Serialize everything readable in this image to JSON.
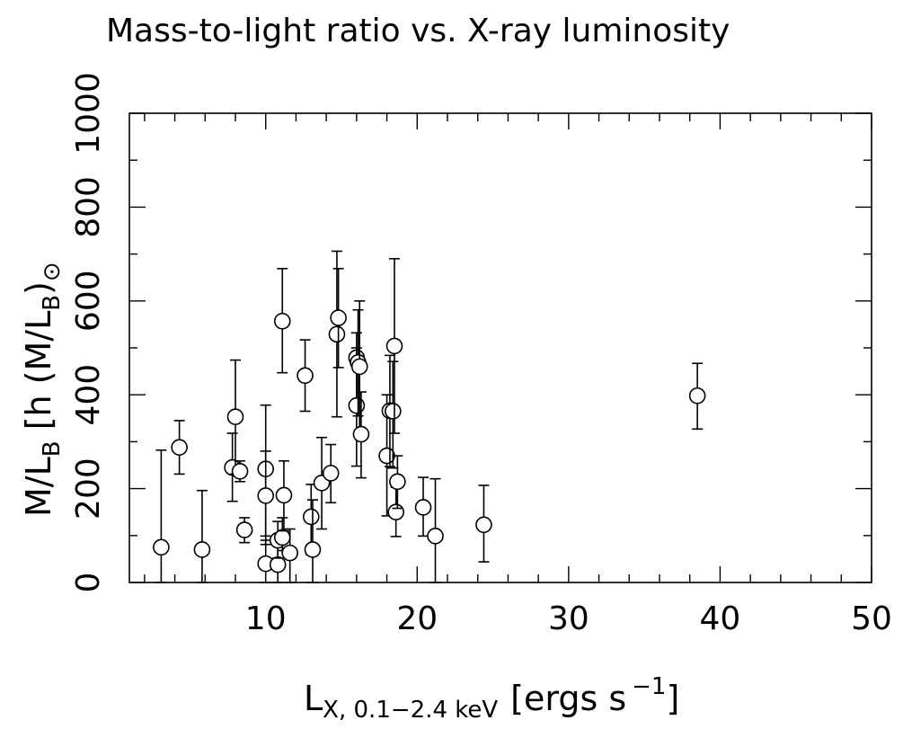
{
  "chart_data": {
    "type": "scatter",
    "title": "Mass-to-light ratio vs. X-ray luminosity",
    "xlabel": {
      "main": "L",
      "sub": "X, 0.1−2.4 keV",
      "unit": "[ergs s",
      "sup": "−1",
      "close": "]"
    },
    "ylabel": {
      "main": "M/L",
      "sub1": "B",
      "mid": " [h (M/L",
      "sub2": "B",
      "close": ")",
      "sub3": "⊙"
    },
    "xlim": [
      1,
      50
    ],
    "ylim": [
      0,
      1000
    ],
    "xticks": [
      10,
      20,
      30,
      40,
      50
    ],
    "xtick_labels": [
      "10",
      "20",
      "30",
      "40",
      "50"
    ],
    "yticks": [
      0,
      200,
      400,
      600,
      800,
      1000
    ],
    "ytick_labels": [
      "0",
      "200",
      "400",
      "600",
      "800",
      "1000"
    ],
    "grid": false,
    "points": [
      {
        "x": 3.1,
        "y": 75,
        "lo": 0,
        "hi": 282
      },
      {
        "x": 4.3,
        "y": 288,
        "lo": 231,
        "hi": 345
      },
      {
        "x": 5.8,
        "y": 70,
        "lo": 0,
        "hi": 196
      },
      {
        "x": 7.8,
        "y": 245,
        "lo": 173,
        "hi": 318
      },
      {
        "x": 8.0,
        "y": 353,
        "lo": 231,
        "hi": 474
      },
      {
        "x": 8.3,
        "y": 237,
        "lo": 215,
        "hi": 259
      },
      {
        "x": 8.6,
        "y": 112,
        "lo": 85,
        "hi": 138
      },
      {
        "x": 10.0,
        "y": 242,
        "lo": 99,
        "hi": 378
      },
      {
        "x": 10.0,
        "y": 185,
        "lo": 81,
        "hi": 280
      },
      {
        "x": 10.0,
        "y": 40,
        "lo": 0,
        "hi": 90
      },
      {
        "x": 10.8,
        "y": 38,
        "lo": 0,
        "hi": 98
      },
      {
        "x": 10.8,
        "y": 90,
        "lo": 52,
        "hi": 130
      },
      {
        "x": 11.1,
        "y": 96,
        "lo": 68,
        "hi": 138
      },
      {
        "x": 11.1,
        "y": 557,
        "lo": 447,
        "hi": 669
      },
      {
        "x": 11.2,
        "y": 186,
        "lo": 110,
        "hi": 259
      },
      {
        "x": 11.6,
        "y": 63,
        "lo": 0,
        "hi": 114
      },
      {
        "x": 12.6,
        "y": 441,
        "lo": 365,
        "hi": 517
      },
      {
        "x": 13.0,
        "y": 140,
        "lo": 59,
        "hi": 209
      },
      {
        "x": 13.1,
        "y": 70,
        "lo": 0,
        "hi": 176
      },
      {
        "x": 13.7,
        "y": 212,
        "lo": 114,
        "hi": 309
      },
      {
        "x": 14.3,
        "y": 233,
        "lo": 170,
        "hi": 294
      },
      {
        "x": 14.7,
        "y": 529,
        "lo": 353,
        "hi": 706
      },
      {
        "x": 14.8,
        "y": 564,
        "lo": 458,
        "hi": 669
      },
      {
        "x": 16.0,
        "y": 479,
        "lo": 390,
        "hi": 532
      },
      {
        "x": 16.0,
        "y": 377,
        "lo": 248,
        "hi": 500
      },
      {
        "x": 16.1,
        "y": 469,
        "lo": 355,
        "hi": 581
      },
      {
        "x": 16.2,
        "y": 460,
        "lo": 318,
        "hi": 600
      },
      {
        "x": 16.3,
        "y": 316,
        "lo": 223,
        "hi": 406
      },
      {
        "x": 18.0,
        "y": 270,
        "lo": 142,
        "hi": 400
      },
      {
        "x": 18.2,
        "y": 366,
        "lo": 247,
        "hi": 484
      },
      {
        "x": 18.4,
        "y": 365,
        "lo": 244,
        "hi": 471
      },
      {
        "x": 18.5,
        "y": 504,
        "lo": 318,
        "hi": 690
      },
      {
        "x": 18.6,
        "y": 150,
        "lo": 98,
        "hi": 203
      },
      {
        "x": 18.7,
        "y": 215,
        "lo": 158,
        "hi": 270
      },
      {
        "x": 20.4,
        "y": 160,
        "lo": 99,
        "hi": 224
      },
      {
        "x": 21.2,
        "y": 99,
        "lo": 0,
        "hi": 221
      },
      {
        "x": 24.4,
        "y": 123,
        "lo": 44,
        "hi": 207
      },
      {
        "x": 38.5,
        "y": 398,
        "lo": 327,
        "hi": 467
      }
    ]
  }
}
